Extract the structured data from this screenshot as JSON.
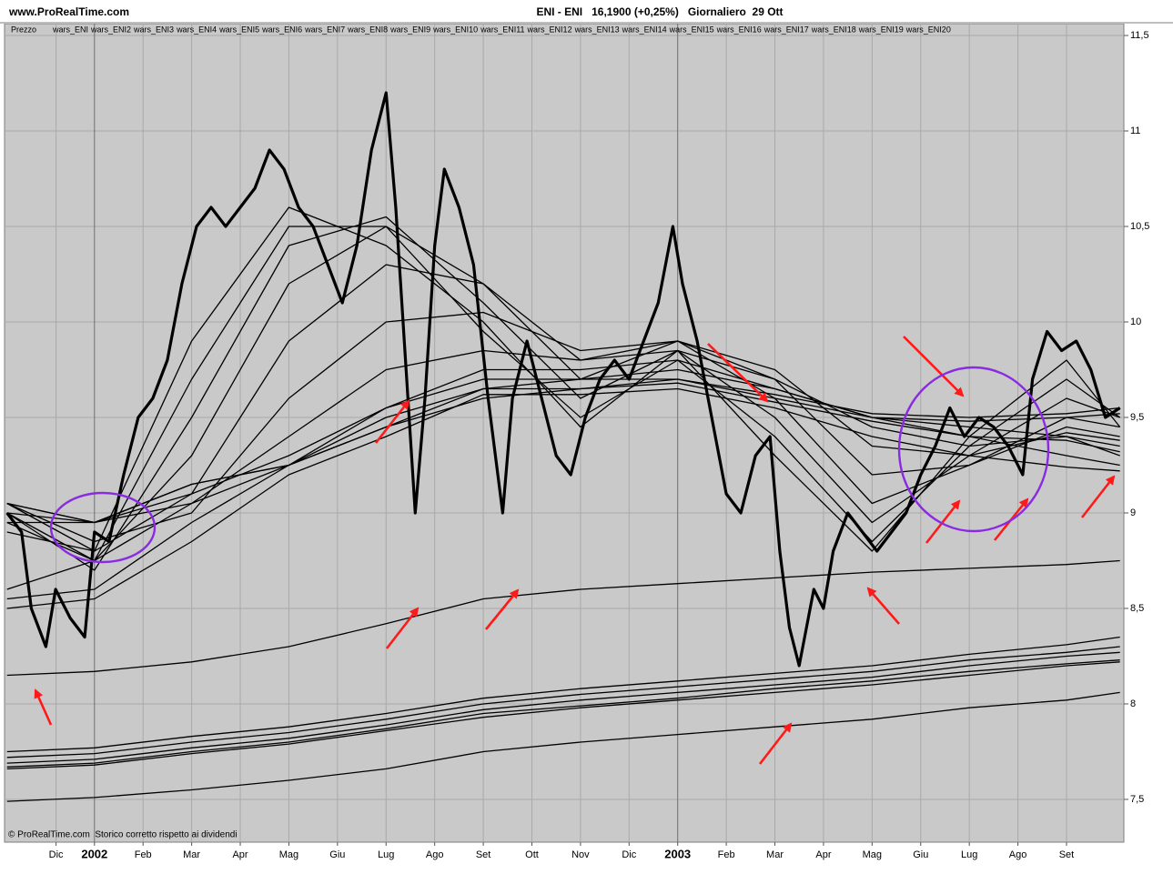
{
  "chart_data": {
    "type": "line",
    "source": "www.ProRealTime.com",
    "title": "ENI - ENI   16,1900 (+0,25%)   Giornaliero  29 Ott",
    "note": "© ProRealTime.com  Storico corretto rispetto ai dividendi",
    "xlim": [
      -0.85,
      22.18
    ],
    "xticks": [
      {
        "value": 0.21,
        "label": "Dic"
      },
      {
        "value": 1,
        "label": "2002"
      },
      {
        "value": 2,
        "label": "Feb"
      },
      {
        "value": 3,
        "label": "Mar"
      },
      {
        "value": 4,
        "label": "Apr"
      },
      {
        "value": 5,
        "label": "Mag"
      },
      {
        "value": 6,
        "label": "Giu"
      },
      {
        "value": 7,
        "label": "Lug"
      },
      {
        "value": 8,
        "label": "Ago"
      },
      {
        "value": 9,
        "label": "Set"
      },
      {
        "value": 10,
        "label": "Ott"
      },
      {
        "value": 11,
        "label": "Nov"
      },
      {
        "value": 12,
        "label": "Dic"
      },
      {
        "value": 13,
        "label": "2003"
      },
      {
        "value": 14,
        "label": "Feb"
      },
      {
        "value": 15,
        "label": "Mar"
      },
      {
        "value": 16,
        "label": "Apr"
      },
      {
        "value": 17,
        "label": "Mag"
      },
      {
        "value": 18,
        "label": "Giu"
      },
      {
        "value": 19,
        "label": "Lug"
      },
      {
        "value": 20,
        "label": "Ago"
      },
      {
        "value": 21,
        "label": "Set"
      }
    ],
    "ylim": [
      7.276,
      11.562
    ],
    "yticks": [
      {
        "value": 7.5,
        "label": "7,5"
      },
      8,
      {
        "value": 8.5,
        "label": "8,5"
      },
      9,
      {
        "value": 9.5,
        "label": "9,5"
      },
      10,
      {
        "value": 10.5,
        "label": "10,5"
      },
      11,
      {
        "value": 11.5,
        "label": "11,5"
      }
    ],
    "grid": true,
    "x": [
      -0.8,
      1,
      3,
      5,
      7,
      9,
      11,
      13,
      15,
      17,
      19,
      21,
      22.1
    ],
    "series": [
      {
        "name": "Prezzo",
        "color": "#000000",
        "x": [
          -0.8,
          -0.5,
          -0.3,
          0,
          0.2,
          0.5,
          0.8,
          1.0,
          1.3,
          1.6,
          1.9,
          2.2,
          2.5,
          2.8,
          3.1,
          3.4,
          3.7,
          4.0,
          4.3,
          4.6,
          4.9,
          5.2,
          5.5,
          5.8,
          6.1,
          6.4,
          6.7,
          7.0,
          7.2,
          7.4,
          7.6,
          7.8,
          8.0,
          8.2,
          8.5,
          8.8,
          9.1,
          9.4,
          9.6,
          9.9,
          10.2,
          10.5,
          10.8,
          11.1,
          11.4,
          11.7,
          12.0,
          12.3,
          12.6,
          12.9,
          13.1,
          13.4,
          13.7,
          14.0,
          14.3,
          14.6,
          14.9,
          15.1,
          15.3,
          15.5,
          15.8,
          16.0,
          16.2,
          16.5,
          16.8,
          17.1,
          17.4,
          17.7,
          18.0,
          18.3,
          18.6,
          18.9,
          19.2,
          19.5,
          19.8,
          20.1,
          20.3,
          20.6,
          20.9,
          21.2,
          21.5,
          21.8,
          22.1
        ],
        "values": [
          9.0,
          8.9,
          8.5,
          8.3,
          8.6,
          8.45,
          8.35,
          8.9,
          8.85,
          9.2,
          9.5,
          9.6,
          9.8,
          10.2,
          10.5,
          10.6,
          10.5,
          10.6,
          10.7,
          10.9,
          10.8,
          10.6,
          10.5,
          10.3,
          10.1,
          10.4,
          10.9,
          11.2,
          10.6,
          9.8,
          9.0,
          9.6,
          10.4,
          10.8,
          10.6,
          10.3,
          9.6,
          9.0,
          9.6,
          9.9,
          9.6,
          9.3,
          9.2,
          9.5,
          9.7,
          9.8,
          9.7,
          9.9,
          10.1,
          10.5,
          10.2,
          9.9,
          9.5,
          9.1,
          9.0,
          9.3,
          9.4,
          8.8,
          8.4,
          8.2,
          8.6,
          8.5,
          8.8,
          9.0,
          8.9,
          8.8,
          8.9,
          9.0,
          9.2,
          9.35,
          9.55,
          9.4,
          9.5,
          9.45,
          9.35,
          9.2,
          9.7,
          9.95,
          9.85,
          9.9,
          9.75,
          9.5,
          9.55
        ]
      },
      {
        "name": "wars_ENI",
        "color": "#000000",
        "values": [
          8.9,
          8.8,
          9.9,
          10.6,
          10.4,
          10.0,
          9.45,
          9.85,
          9.3,
          8.8,
          9.4,
          9.8,
          9.45
        ]
      },
      {
        "name": "wars_ENI2",
        "color": "#000000",
        "values": [
          8.95,
          8.75,
          9.7,
          10.5,
          10.5,
          9.95,
          9.5,
          9.8,
          9.4,
          8.85,
          9.35,
          9.7,
          9.5
        ]
      },
      {
        "name": "wars_ENI3",
        "color": "#000000",
        "values": [
          9.0,
          8.7,
          9.5,
          10.4,
          10.55,
          10.1,
          9.6,
          9.85,
          9.5,
          8.95,
          9.3,
          9.6,
          9.5
        ]
      },
      {
        "name": "wars_ENI4",
        "color": "#000000",
        "values": [
          9.0,
          8.75,
          9.3,
          10.2,
          10.5,
          10.2,
          9.7,
          9.9,
          9.6,
          9.05,
          9.25,
          9.5,
          9.45
        ]
      },
      {
        "name": "wars_ENI5",
        "color": "#000000",
        "values": [
          9.05,
          8.8,
          9.1,
          9.9,
          10.3,
          10.2,
          9.8,
          9.9,
          9.7,
          9.2,
          9.25,
          9.45,
          9.4
        ]
      },
      {
        "name": "wars_ENI6",
        "color": "#000000",
        "values": [
          9.05,
          8.85,
          9.0,
          9.6,
          10.0,
          10.05,
          9.85,
          9.9,
          9.75,
          9.35,
          9.3,
          9.42,
          9.38
        ]
      },
      {
        "name": "wars_ENI7",
        "color": "#000000",
        "values": [
          9.05,
          8.95,
          9.05,
          9.4,
          9.75,
          9.85,
          9.8,
          9.85,
          9.7,
          9.45,
          9.35,
          9.4,
          9.35
        ]
      },
      {
        "name": "wars_ENI8",
        "color": "#000000",
        "values": [
          9.0,
          8.95,
          9.1,
          9.3,
          9.55,
          9.75,
          9.75,
          9.8,
          9.65,
          9.5,
          9.4,
          9.38,
          9.32
        ]
      },
      {
        "name": "wars_ENI9",
        "color": "#000000",
        "values": [
          9.05,
          8.95,
          9.15,
          9.25,
          9.55,
          9.7,
          9.7,
          9.75,
          9.65,
          9.5,
          9.45,
          9.4,
          9.3
        ]
      },
      {
        "name": "wars_ENI10",
        "color": "#000000",
        "values": [
          8.95,
          8.95,
          9.15,
          9.25,
          9.45,
          9.65,
          9.7,
          9.7,
          9.6,
          9.5,
          9.48,
          9.5,
          9.52
        ]
      },
      {
        "name": "wars_ENI11",
        "color": "#000000",
        "values": [
          8.6,
          8.75,
          9.05,
          9.25,
          9.45,
          9.6,
          9.65,
          9.7,
          9.62,
          9.52,
          9.5,
          9.52,
          9.55
        ]
      },
      {
        "name": "wars_ENI12",
        "color": "#000000",
        "values": [
          8.55,
          8.6,
          8.95,
          9.25,
          9.5,
          9.65,
          9.65,
          9.68,
          9.58,
          9.48,
          9.4,
          9.3,
          9.25
        ]
      },
      {
        "name": "wars_ENI13",
        "color": "#000000",
        "values": [
          8.5,
          8.55,
          8.85,
          9.2,
          9.4,
          9.62,
          9.62,
          9.65,
          9.55,
          9.4,
          9.3,
          9.24,
          9.22
        ]
      },
      {
        "name": "wars_ENI14",
        "color": "#000000",
        "values": [
          8.15,
          8.17,
          8.22,
          8.3,
          8.42,
          8.55,
          8.6,
          8.63,
          8.66,
          8.69,
          8.71,
          8.73,
          8.75
        ]
      },
      {
        "name": "wars_ENI15",
        "color": "#000000",
        "values": [
          7.75,
          7.77,
          7.83,
          7.88,
          7.95,
          8.03,
          8.08,
          8.12,
          8.16,
          8.2,
          8.26,
          8.31,
          8.35
        ]
      },
      {
        "name": "wars_ENI16",
        "color": "#000000",
        "values": [
          7.72,
          7.74,
          7.8,
          7.85,
          7.92,
          8.0,
          8.05,
          8.09,
          8.13,
          8.17,
          8.23,
          8.27,
          8.3
        ]
      },
      {
        "name": "wars_ENI17",
        "color": "#000000",
        "values": [
          7.69,
          7.71,
          7.77,
          7.82,
          7.89,
          7.97,
          8.02,
          8.06,
          8.1,
          8.14,
          8.2,
          8.25,
          8.27
        ]
      },
      {
        "name": "wars_ENI18",
        "color": "#000000",
        "values": [
          7.67,
          7.69,
          7.75,
          7.8,
          7.87,
          7.95,
          7.99,
          8.03,
          8.08,
          8.12,
          8.17,
          8.21,
          8.23
        ]
      },
      {
        "name": "wars_ENI19",
        "color": "#000000",
        "values": [
          7.49,
          7.51,
          7.55,
          7.6,
          7.66,
          7.75,
          7.8,
          7.84,
          7.88,
          7.92,
          7.98,
          8.02,
          8.06
        ]
      },
      {
        "name": "wars_ENI20",
        "color": "#000000",
        "values": [
          7.66,
          7.68,
          7.74,
          7.79,
          7.86,
          7.93,
          7.98,
          8.02,
          8.06,
          8.1,
          8.15,
          8.2,
          8.22
        ]
      }
    ]
  }
}
